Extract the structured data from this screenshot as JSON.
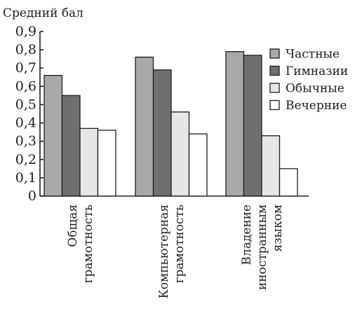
{
  "chart_data": {
    "type": "bar",
    "ylabel": "Средний бал",
    "xlabel": "",
    "ylim": [
      0,
      0.9
    ],
    "yticks": [
      "0",
      "0,1",
      "0,2",
      "0,3",
      "0,4",
      "0,5",
      "0,6",
      "0,7",
      "0,8",
      "0,9"
    ],
    "categories": [
      [
        "Общая",
        "грамотность"
      ],
      [
        "Компьютерная",
        "грамотность"
      ],
      [
        "Владение",
        "иностранным",
        "языком"
      ]
    ],
    "series": [
      {
        "name": "Частные",
        "color": "#a9a9a9",
        "values": [
          0.66,
          0.76,
          0.79
        ]
      },
      {
        "name": "Гимназии",
        "color": "#6f6f6f",
        "values": [
          0.55,
          0.69,
          0.77
        ]
      },
      {
        "name": "Обычные",
        "color": "#e6e6e6",
        "values": [
          0.37,
          0.46,
          0.33
        ]
      },
      {
        "name": "Вечерние",
        "color": "#ffffff",
        "values": [
          0.36,
          0.34,
          0.15
        ]
      }
    ],
    "legend_position": "right",
    "grid": false
  }
}
